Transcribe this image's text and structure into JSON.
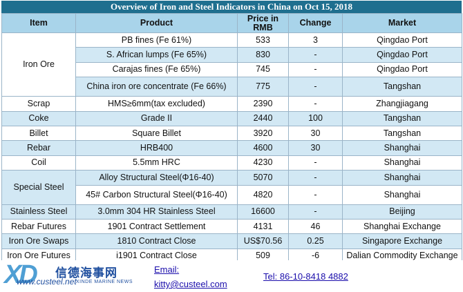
{
  "title": "Overview of Iron and Steel Indicators in China on Oct 15, 2018",
  "headers": {
    "item": "Item",
    "product": "Product",
    "price": "Price in RMB",
    "change": "Change",
    "market": "Market"
  },
  "groups": {
    "iron_ore": "Iron Ore",
    "scrap": "Scrap",
    "coke": "Coke",
    "billet": "Billet",
    "rebar": "Rebar",
    "coil": "Coil",
    "special_steel": "Special Steel",
    "stainless_steel": "Stainless Steel",
    "rebar_futures": "Rebar Futures",
    "iron_ore_swaps": "Iron Ore Swaps",
    "iron_ore_futures": "Iron Ore Futures"
  },
  "rows": [
    {
      "product": "PB fines (Fe 61%)",
      "price": "533",
      "change": "3",
      "market": "Qingdao Port"
    },
    {
      "product": "S. African lumps (Fe 65%)",
      "price": "830",
      "change": "-",
      "market": "Qingdao Port"
    },
    {
      "product": "Carajas fines (Fe 65%)",
      "price": "745",
      "change": "-",
      "market": "Qingdao Port"
    },
    {
      "product": "China iron ore concentrate (Fe 66%)",
      "price": "775",
      "change": "-",
      "market": "Tangshan"
    },
    {
      "product": "HMS≥6mm(tax excluded)",
      "price": "2390",
      "change": "-",
      "market": "Zhangjiagang"
    },
    {
      "product": "Grade II",
      "price": "2440",
      "change": "100",
      "market": "Tangshan"
    },
    {
      "product": "Square Billet",
      "price": "3920",
      "change": "30",
      "market": "Tangshan"
    },
    {
      "product": "HRB400",
      "price": "4600",
      "change": "30",
      "market": "Shanghai"
    },
    {
      "product": "5.5mm HRC",
      "price": "4230",
      "change": "-",
      "market": "Shanghai"
    },
    {
      "product": "Alloy Structural Steel(Φ16-40)",
      "price": "5070",
      "change": "-",
      "market": "Shanghai"
    },
    {
      "product": "45# Carbon Structural Steel(Φ16-40)",
      "price": "4820",
      "change": "-",
      "market": "Shanghai"
    },
    {
      "product": "3.0mm 304 HR Stainless Steel",
      "price": "16600",
      "change": "-",
      "market": "Beijing"
    },
    {
      "product": "1901 Contract Settlement",
      "price": "4131",
      "change": "46",
      "market": "Shanghai Exchange"
    },
    {
      "product": "1810 Contract Close",
      "price": "US$70.56",
      "change": "0.25",
      "market": "Singapore Exchange"
    },
    {
      "product": "i1901 Contract Close",
      "price": "509",
      "change": "-6",
      "market": "Dalian Commodity Exchange"
    }
  ],
  "footer": {
    "logo_mark": "XD",
    "logo_cn": "信德海事网",
    "logo_url": "www.custeel.net",
    "logo_sub": "XINDE MARINE NEWS",
    "email_label": "Email:",
    "email": "kitty@custeel.com",
    "tel": "Tel: 86-10-8418 4882"
  },
  "colors": {
    "title_bar": "#1f6f8f",
    "header_bg": "#a9d4ea",
    "alt_row_bg": "#d2e8f4",
    "border": "#9ab4c8",
    "link": "#1a0dab"
  }
}
